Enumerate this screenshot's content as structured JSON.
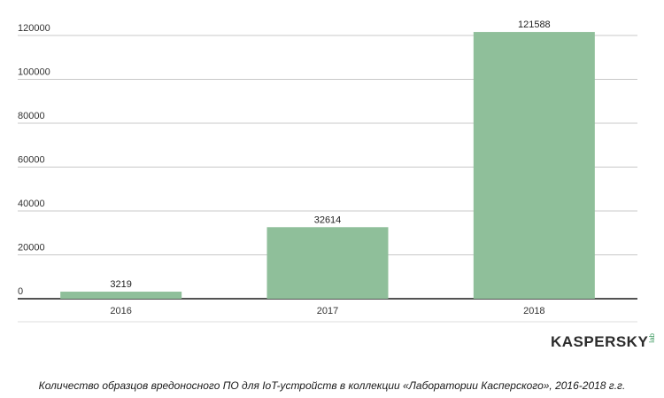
{
  "chart_data": {
    "type": "bar",
    "categories": [
      "2016",
      "2017",
      "2018"
    ],
    "values": [
      3219,
      32614,
      121588
    ],
    "ylim": [
      0,
      120000
    ],
    "yticks": [
      0,
      20000,
      40000,
      60000,
      80000,
      100000,
      120000
    ],
    "title": "",
    "xlabel": "",
    "ylabel": "",
    "grid": true,
    "bar_color": "#8fbf9a",
    "grid_color": "#c8c8c8",
    "axis_color": "#1a1a1a"
  },
  "logo": {
    "text": "KASPERSKY",
    "suffix": "lab",
    "accent_color": "#3c9a5f"
  },
  "caption": "Количество образцов вредоносного ПО для IoT-устройств в коллекции «Лаборатории Касперского», 2016-2018 г.г."
}
